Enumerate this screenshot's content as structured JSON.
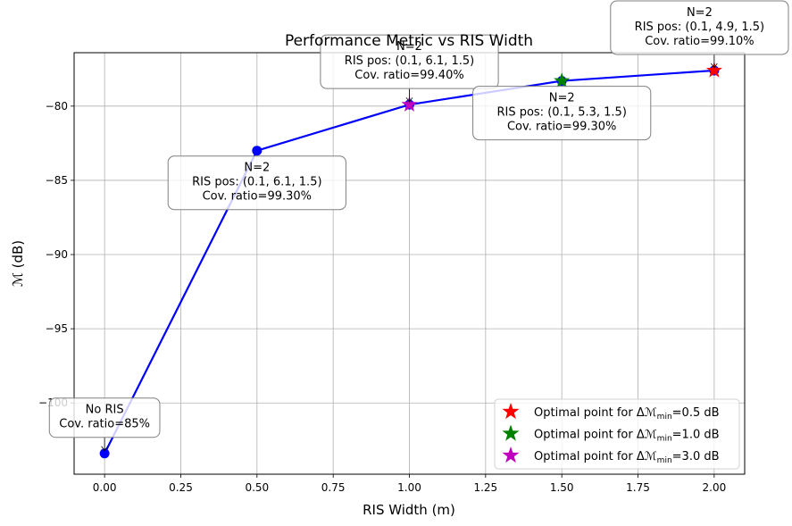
{
  "chart_data": {
    "type": "line",
    "title": "Performance Metric vs RIS Width",
    "xlabel": "RIS Width (m)",
    "ylabel_symbol": "ℳ",
    "ylabel_unit": " (dB)",
    "xlim": [
      -0.1,
      2.1
    ],
    "ylim": [
      -104.8,
      -76.4
    ],
    "xticks": [
      0.0,
      0.25,
      0.5,
      0.75,
      1.0,
      1.25,
      1.5,
      1.75,
      2.0
    ],
    "xtick_labels": [
      "0.00",
      "0.25",
      "0.50",
      "0.75",
      "1.00",
      "1.25",
      "1.50",
      "1.75",
      "2.00"
    ],
    "yticks": [
      -100,
      -95,
      -90,
      -85,
      -80
    ],
    "ytick_labels": [
      "−100",
      "−95",
      "−90",
      "−85",
      "−80"
    ],
    "grid": true,
    "line_color": "#0000ff",
    "series": [
      {
        "x": [
          0.0,
          0.5,
          1.0,
          1.5,
          2.0
        ],
        "y": [
          -103.4,
          -83.0,
          -79.9,
          -78.3,
          -77.6
        ]
      }
    ],
    "optimal_points": [
      {
        "x": 2.0,
        "y": -77.6,
        "color": "#ff0000",
        "legend": {
          "prefix": "Optimal point for Δ",
          "sym": "ℳ",
          "sub": "min",
          "suffix": "=0.5 dB"
        }
      },
      {
        "x": 1.5,
        "y": -78.3,
        "color": "#008000",
        "legend": {
          "prefix": "Optimal point for Δ",
          "sym": "ℳ",
          "sub": "min",
          "suffix": "=1.0 dB"
        }
      },
      {
        "x": 1.0,
        "y": -79.9,
        "color": "#bf00bf",
        "legend": {
          "prefix": "Optimal point for Δ",
          "sym": "ℳ",
          "sub": "min",
          "suffix": "=3.0 dB"
        }
      }
    ],
    "legend_position": "lower-right",
    "annotations": [
      {
        "x": 0.0,
        "y": -103.4,
        "lines": [
          "No RIS",
          "Cov. ratio=85%"
        ],
        "place": "above",
        "arrow": true
      },
      {
        "x": 0.5,
        "y": -83.0,
        "lines": [
          "N=2",
          "RIS pos: (0.1, 6.1, 1.5)",
          "Cov. ratio=99.30%"
        ],
        "place": "below",
        "arrow": false
      },
      {
        "x": 1.0,
        "y": -79.9,
        "lines": [
          "N=2",
          "RIS pos: (0.1, 6.1, 1.5)",
          "Cov. ratio=99.40%"
        ],
        "place": "above",
        "arrow": true
      },
      {
        "x": 1.5,
        "y": -78.3,
        "lines": [
          "N=2",
          "RIS pos: (0.1, 5.3, 1.5)",
          "Cov. ratio=99.30%"
        ],
        "place": "below",
        "arrow": false
      },
      {
        "x": 2.0,
        "y": -77.6,
        "lines": [
          "N=2",
          "RIS pos: (0.1, 4.9, 1.5)",
          "Cov. ratio=99.10%"
        ],
        "place": "above",
        "arrow": true
      }
    ]
  }
}
